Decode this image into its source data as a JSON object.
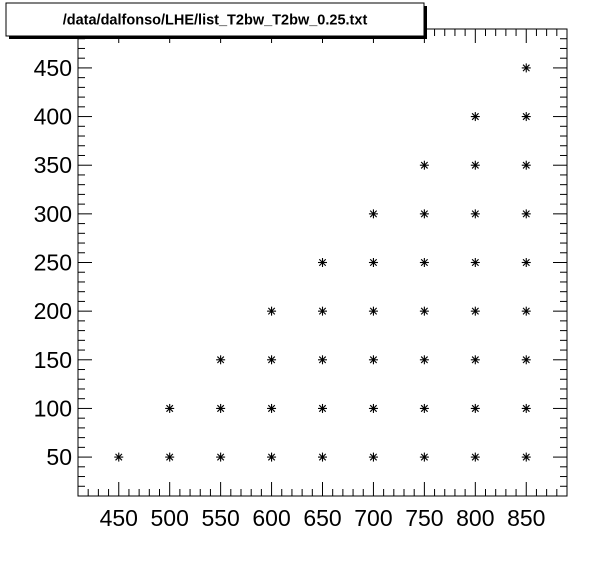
{
  "chart_data": {
    "type": "scatter",
    "title": "/data/dalfonso/LHE/list_T2bw_T2bw_0.25.txt",
    "xlabel": "",
    "ylabel": "",
    "xlim": [
      410,
      890
    ],
    "ylim": [
      10,
      490
    ],
    "x_ticks": [
      450,
      500,
      550,
      600,
      650,
      700,
      750,
      800,
      850
    ],
    "y_ticks": [
      50,
      100,
      150,
      200,
      250,
      300,
      350,
      400,
      450
    ],
    "x_minor_step": 10,
    "y_minor_step": 10,
    "marker": "asterisk",
    "marker_color": "#000000",
    "grid": false,
    "points": [
      {
        "x": 450,
        "y": 50
      },
      {
        "x": 500,
        "y": 50
      },
      {
        "x": 500,
        "y": 100
      },
      {
        "x": 550,
        "y": 50
      },
      {
        "x": 550,
        "y": 100
      },
      {
        "x": 550,
        "y": 150
      },
      {
        "x": 600,
        "y": 50
      },
      {
        "x": 600,
        "y": 100
      },
      {
        "x": 600,
        "y": 150
      },
      {
        "x": 600,
        "y": 200
      },
      {
        "x": 650,
        "y": 50
      },
      {
        "x": 650,
        "y": 100
      },
      {
        "x": 650,
        "y": 150
      },
      {
        "x": 650,
        "y": 200
      },
      {
        "x": 650,
        "y": 250
      },
      {
        "x": 700,
        "y": 50
      },
      {
        "x": 700,
        "y": 100
      },
      {
        "x": 700,
        "y": 150
      },
      {
        "x": 700,
        "y": 200
      },
      {
        "x": 700,
        "y": 250
      },
      {
        "x": 700,
        "y": 300
      },
      {
        "x": 750,
        "y": 50
      },
      {
        "x": 750,
        "y": 100
      },
      {
        "x": 750,
        "y": 150
      },
      {
        "x": 750,
        "y": 200
      },
      {
        "x": 750,
        "y": 250
      },
      {
        "x": 750,
        "y": 300
      },
      {
        "x": 750,
        "y": 350
      },
      {
        "x": 800,
        "y": 50
      },
      {
        "x": 800,
        "y": 100
      },
      {
        "x": 800,
        "y": 150
      },
      {
        "x": 800,
        "y": 200
      },
      {
        "x": 800,
        "y": 250
      },
      {
        "x": 800,
        "y": 300
      },
      {
        "x": 800,
        "y": 350
      },
      {
        "x": 800,
        "y": 400
      },
      {
        "x": 850,
        "y": 50
      },
      {
        "x": 850,
        "y": 100
      },
      {
        "x": 850,
        "y": 150
      },
      {
        "x": 850,
        "y": 200
      },
      {
        "x": 850,
        "y": 250
      },
      {
        "x": 850,
        "y": 300
      },
      {
        "x": 850,
        "y": 350
      },
      {
        "x": 850,
        "y": 400
      },
      {
        "x": 850,
        "y": 450
      }
    ]
  }
}
